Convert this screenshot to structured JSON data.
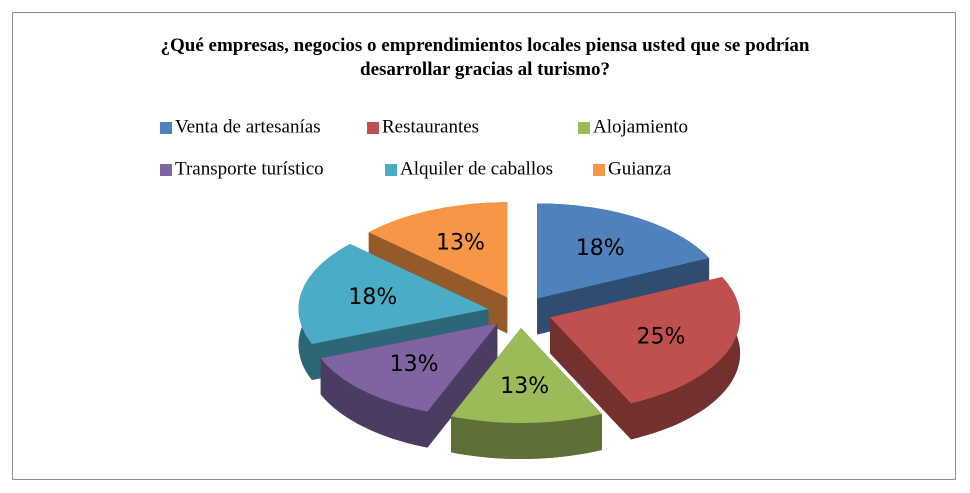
{
  "chart_data": {
    "type": "pie3d",
    "title": "¿Qué empresas, negocios o emprendimientos locales piensa usted que se podrían desarrollar gracias al turismo?",
    "categories": [
      "Venta de artesanías",
      "Restaurantes",
      "Alojamiento",
      "Transporte turístico",
      "Alquiler de caballos",
      "Guianza"
    ],
    "values": [
      18,
      25,
      13,
      13,
      18,
      13
    ],
    "value_labels": [
      "18%",
      "25%",
      "13%",
      "13%",
      "18%",
      "13%"
    ],
    "colors": [
      "#4f81bd",
      "#c0504d",
      "#9bbb59",
      "#8064a2",
      "#4bacc6",
      "#f79646"
    ],
    "legend": "top"
  }
}
